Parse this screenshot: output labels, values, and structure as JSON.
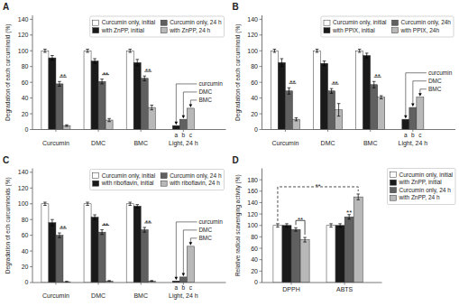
{
  "chart_data": [
    {
      "type": "bar",
      "title": "A",
      "y_label": "Degradation of each curcuminoid (%)",
      "categories": [
        "Curcumin",
        "DMC",
        "BMC",
        "Light, 24 h"
      ],
      "series": [
        {
          "name": "Curcumin only, initial",
          "color": "#FFFFFF",
          "values": [
            100,
            100,
            100,
            null
          ],
          "errors": [
            2,
            2,
            2,
            null
          ]
        },
        {
          "name": "with ZnPP, initial",
          "color": "#1a1a1a",
          "values": [
            91,
            87,
            85,
            null
          ],
          "errors": [
            3,
            3,
            4,
            null
          ]
        },
        {
          "name": "Curcumin only, 24 h",
          "color": "#606060",
          "values": [
            58,
            61,
            65,
            null
          ],
          "errors": [
            3,
            3,
            3,
            null
          ]
        },
        {
          "name": "with ZnPP, 24 h",
          "color": "#b8b8b8",
          "values": [
            5,
            12,
            28,
            null
          ],
          "errors": [
            1,
            2,
            3,
            null
          ]
        }
      ],
      "group_bars": {
        "category": "Light, 24 h",
        "bars": [
          {
            "name": "curcumin",
            "color": "#1a1a1a",
            "value": 5,
            "letter": "a"
          },
          {
            "name": "DMC",
            "color": "#606060",
            "value": 13,
            "letter": "b"
          },
          {
            "name": "BMC",
            "color": "#b8b8b8",
            "value": 27,
            "letter": "c"
          }
        ]
      },
      "significance": {
        "text": "**",
        "series": [
          "Curcumin only, 24 h",
          "with ZnPP, 24 h"
        ]
      },
      "ylim": [
        0,
        145
      ],
      "yticks": [
        0,
        20,
        40,
        60,
        80,
        100,
        120,
        140
      ],
      "legend": "upper right"
    },
    {
      "type": "bar",
      "title": "B",
      "y_label": "Degradation of each curcuminoid (%)",
      "categories": [
        "Curcumin",
        "DMC",
        "BMC",
        "Light, 24 h"
      ],
      "series": [
        {
          "name": "Curcumin only, initial",
          "color": "#FFFFFF",
          "values": [
            100,
            100,
            100,
            null
          ],
          "errors": [
            2,
            2,
            2,
            null
          ]
        },
        {
          "name": "with PPIX, initial",
          "color": "#1a1a1a",
          "values": [
            85,
            84,
            94,
            null
          ],
          "errors": [
            5,
            3,
            3,
            null
          ]
        },
        {
          "name": "Curcumin only, 24h",
          "color": "#606060",
          "values": [
            49,
            49,
            57,
            null
          ],
          "errors": [
            4,
            3,
            4,
            null
          ]
        },
        {
          "name": "with PPIX, 24h",
          "color": "#b8b8b8",
          "values": [
            13,
            25,
            41,
            null
          ],
          "errors": [
            2,
            8,
            2,
            null
          ]
        }
      ],
      "group_bars": {
        "category": "Light, 24 h",
        "bars": [
          {
            "name": "curcumin",
            "color": "#1a1a1a",
            "value": 13,
            "letter": "a"
          },
          {
            "name": "DMC",
            "color": "#606060",
            "value": 28,
            "letter": "b"
          },
          {
            "name": "BMC",
            "color": "#b8b8b8",
            "value": 41,
            "letter": "c"
          }
        ]
      },
      "significance": {
        "text": "**",
        "series": [
          "Curcumin only, 24h",
          "with PPIX, 24h"
        ]
      },
      "ylim": [
        0,
        145
      ],
      "yticks": [
        0,
        20,
        40,
        60,
        80,
        100,
        120,
        140
      ],
      "legend": "upper right"
    },
    {
      "type": "bar",
      "title": "C",
      "y_label": "Degradation of ech curcuminoids (%)",
      "categories": [
        "Curcumin",
        "DMC",
        "BMC",
        "Light, 24 h"
      ],
      "series": [
        {
          "name": "Curcumin only, initial",
          "color": "#FFFFFF",
          "values": [
            100,
            100,
            100,
            null
          ],
          "errors": [
            2,
            2,
            2,
            null
          ]
        },
        {
          "name": "with riboflavin, initial",
          "color": "#1a1a1a",
          "values": [
            76,
            83,
            97,
            null
          ],
          "errors": [
            4,
            3,
            2,
            null
          ]
        },
        {
          "name": "Curcumin only, 24 h",
          "color": "#606060",
          "values": [
            60,
            64,
            67,
            null
          ],
          "errors": [
            3,
            3,
            3,
            null
          ]
        },
        {
          "name": "with riboflavin, 24 h",
          "color": "#b8b8b8",
          "values": [
            1,
            2,
            2,
            null
          ],
          "errors": [
            0.5,
            0.5,
            0.5,
            null
          ]
        }
      ],
      "group_bars": {
        "category": "Light, 24 h",
        "bars": [
          {
            "name": "curcumin",
            "color": "#1a1a1a",
            "value": 2,
            "letter": "a"
          },
          {
            "name": "DMC",
            "color": "#606060",
            "value": 7,
            "letter": "b"
          },
          {
            "name": "BMC",
            "color": "#b8b8b8",
            "value": 46,
            "letter": "c"
          }
        ]
      },
      "significance": {
        "text": "**",
        "series": [
          "Curcumin only, 24 h",
          "with riboflavin, 24 h"
        ]
      },
      "ylim": [
        0,
        145
      ],
      "yticks": [
        0,
        20,
        40,
        60,
        80,
        100,
        120,
        140
      ],
      "legend": "upper right"
    },
    {
      "type": "bar",
      "title": "D",
      "y_label": "Relative radical scavenging activity (%)",
      "categories": [
        "DPPH",
        "ABTS"
      ],
      "series": [
        {
          "name": "Curcumin only, initial",
          "color": "#FFFFFF",
          "values": [
            100,
            100
          ],
          "errors": [
            3,
            3
          ]
        },
        {
          "name": "with ZnPP, initial",
          "color": "#1a1a1a",
          "values": [
            100,
            100
          ],
          "errors": [
            3,
            3
          ]
        },
        {
          "name": "Curcumin only, 24 h",
          "color": "#606060",
          "values": [
            93,
            115
          ],
          "errors": [
            3,
            4
          ]
        },
        {
          "name": "with ZnPP, 24 h",
          "color": "#b8b8b8",
          "values": [
            75,
            150
          ],
          "errors": [
            4,
            5
          ]
        }
      ],
      "brackets": [
        {
          "text": "**",
          "line_style": "solid",
          "from": {
            "series": "Curcumin only, 24 h",
            "category": "DPPH"
          },
          "to": {
            "series": "with ZnPP, 24 h",
            "category": "DPPH"
          }
        },
        {
          "text": "**",
          "line_style": "dashed",
          "from": {
            "series": "Curcumin only, initial",
            "category": "DPPH"
          },
          "to": {
            "series": "with ZnPP, 24 h",
            "category": "ABTS"
          }
        }
      ],
      "annotations": [
        {
          "text": "**",
          "series": "Curcumin only, 24 h",
          "category": "ABTS"
        }
      ],
      "ylim": [
        0,
        200
      ],
      "yticks": [
        0,
        20,
        40,
        60,
        80,
        100,
        120,
        140,
        160,
        180
      ],
      "legend": "right"
    }
  ]
}
